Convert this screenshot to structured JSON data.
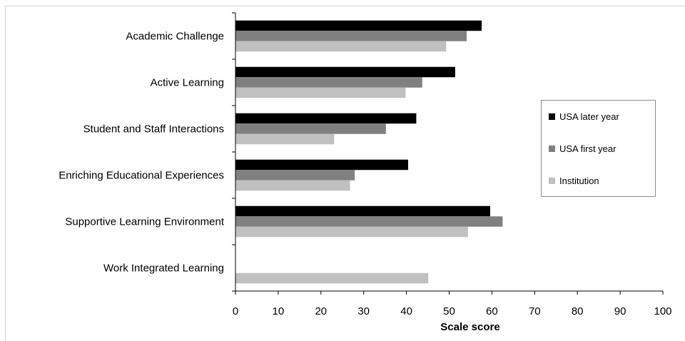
{
  "chart_data": {
    "type": "bar",
    "orientation": "horizontal",
    "categories": [
      "Academic Challenge",
      "Active Learning",
      "Student and Staff Interactions",
      "Enriching Educational Experiences",
      "Supportive Learning Environment",
      "Work Integrated Learning"
    ],
    "series": [
      {
        "name": "USA later year",
        "color": "#000000",
        "values": [
          57.6,
          51.4,
          42.3,
          40.4,
          59.6,
          null
        ]
      },
      {
        "name": "USA first year",
        "color": "#808080",
        "values": [
          54.1,
          43.7,
          35.2,
          27.9,
          62.5,
          null
        ]
      },
      {
        "name": "Institution",
        "color": "#c0c0c0",
        "values": [
          49.3,
          39.8,
          23.1,
          26.8,
          54.4,
          45.1
        ]
      }
    ],
    "xlabel": "Scale score",
    "ylabel": "",
    "xlim": [
      0,
      100
    ],
    "xticks": [
      0,
      10,
      20,
      30,
      40,
      50,
      60,
      70,
      80,
      90,
      100
    ],
    "grid": false,
    "legend_position": "right"
  }
}
